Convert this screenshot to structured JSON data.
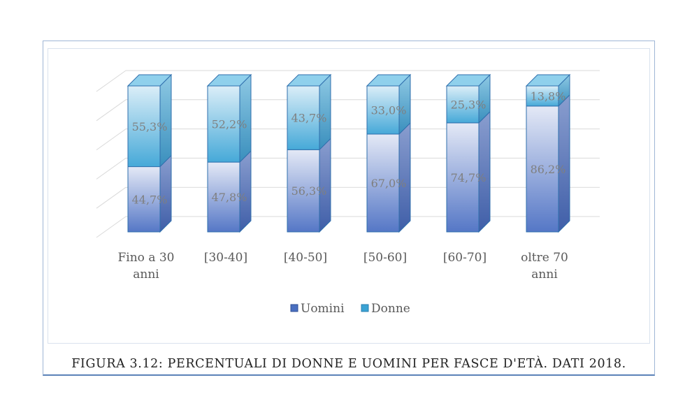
{
  "chart_data": {
    "type": "bar",
    "stacked": true,
    "three_d": true,
    "categories": [
      "Fino a 30 anni",
      "[30-40]",
      "[40-50]",
      "[50-60]",
      "[60-70]",
      "oltre 70 anni"
    ],
    "category_lines": [
      [
        "Fino a 30",
        "anni"
      ],
      [
        "[30-40]"
      ],
      [
        "[40-50]"
      ],
      [
        "[50-60]"
      ],
      [
        "[60-70]"
      ],
      [
        "oltre 70",
        "anni"
      ]
    ],
    "series": [
      {
        "name": "Uomini",
        "values": [
          44.7,
          47.8,
          56.3,
          67.0,
          74.7,
          86.2
        ],
        "labels": [
          "44,7%",
          "47,8%",
          "56,3%",
          "67,0%",
          "74,7%",
          "86,2%"
        ],
        "color": "#4a6fc0"
      },
      {
        "name": "Donne",
        "values": [
          55.3,
          52.2,
          43.7,
          33.0,
          25.3,
          13.8
        ],
        "labels": [
          "55,3%",
          "52,2%",
          "43,7%",
          "33,0%",
          "25,3%",
          "13,8%"
        ],
        "color": "#3aa3d4"
      }
    ],
    "ylim": [
      0,
      100
    ],
    "grid": true,
    "legend": "bottom",
    "title": "",
    "xlabel": "",
    "ylabel": ""
  },
  "caption": "FIGURA 3.12: PERCENTUALI DI DONNE E UOMINI PER FASCE D'ETÀ. DATI 2018."
}
